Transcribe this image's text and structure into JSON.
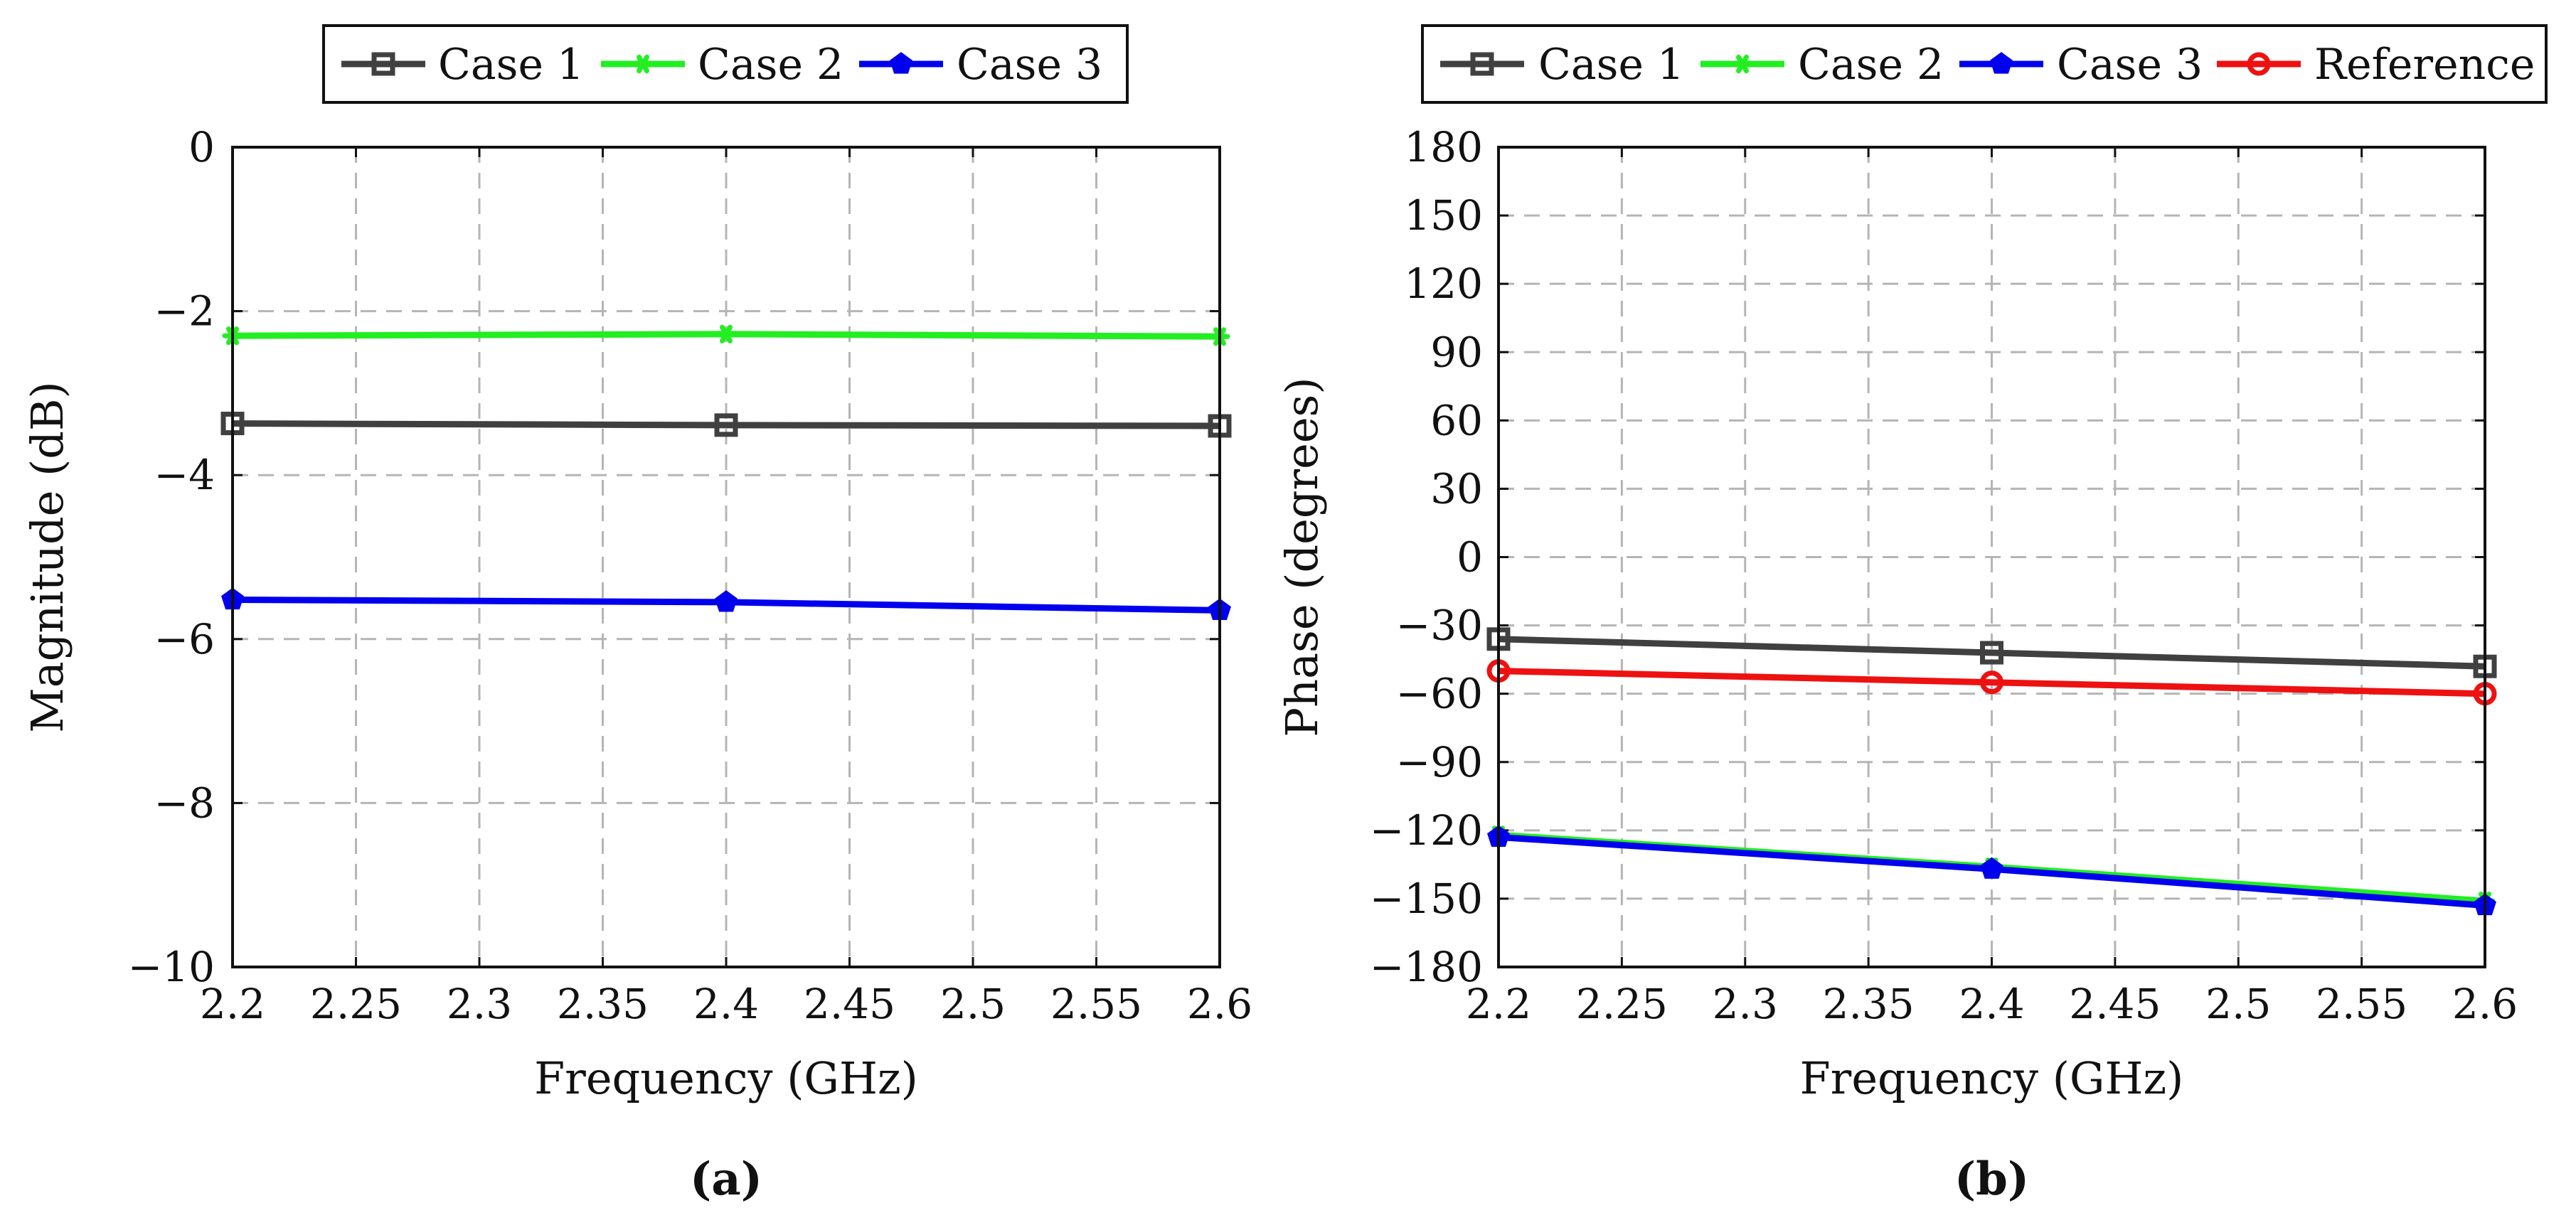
{
  "chart_data": [
    {
      "type": "line",
      "panel_label": "(a)",
      "xlabel": "Frequency (GHz)",
      "ylabel": "Magnitude (dB)",
      "xlim": [
        2.2,
        2.6
      ],
      "ylim": [
        -10,
        0
      ],
      "xticks": [
        2.2,
        2.25,
        2.3,
        2.35,
        2.4,
        2.45,
        2.5,
        2.55,
        2.6
      ],
      "xtick_labels": [
        "2.2",
        "2.25",
        "2.3",
        "2.35",
        "2.4",
        "2.45",
        "2.5",
        "2.55",
        "2.6"
      ],
      "yticks": [
        0,
        -2,
        -4,
        -6,
        -8,
        -10
      ],
      "ytick_labels": [
        "0",
        "−2",
        "−4",
        "−6",
        "−8",
        "−10"
      ],
      "grid": true,
      "legend_position": "top",
      "series": [
        {
          "name": "Case 1",
          "color": "#404040",
          "marker": "square",
          "x": [
            2.2,
            2.4,
            2.6
          ],
          "values": [
            -3.37,
            -3.39,
            -3.4
          ]
        },
        {
          "name": "Case 2",
          "color": "#22ee22",
          "marker": "star",
          "x": [
            2.2,
            2.4,
            2.6
          ],
          "values": [
            -2.3,
            -2.28,
            -2.31
          ]
        },
        {
          "name": "Case 3",
          "color": "#0000ee",
          "marker": "pentagon",
          "x": [
            2.2,
            2.4,
            2.6
          ],
          "values": [
            -5.52,
            -5.55,
            -5.65
          ]
        }
      ]
    },
    {
      "type": "line",
      "panel_label": "(b)",
      "xlabel": "Frequency (GHz)",
      "ylabel": "Phase (degrees)",
      "xlim": [
        2.2,
        2.6
      ],
      "ylim": [
        -180,
        180
      ],
      "xticks": [
        2.2,
        2.25,
        2.3,
        2.35,
        2.4,
        2.45,
        2.5,
        2.55,
        2.6
      ],
      "xtick_labels": [
        "2.2",
        "2.25",
        "2.3",
        "2.35",
        "2.4",
        "2.45",
        "2.5",
        "2.55",
        "2.6"
      ],
      "yticks": [
        180,
        150,
        120,
        90,
        60,
        30,
        0,
        -30,
        -60,
        -90,
        -120,
        -150,
        -180
      ],
      "ytick_labels": [
        "180",
        "150",
        "120",
        "90",
        "60",
        "30",
        "0",
        "−30",
        "−60",
        "−90",
        "−120",
        "−150",
        "−180"
      ],
      "grid": true,
      "legend_position": "top",
      "series": [
        {
          "name": "Case 1",
          "color": "#404040",
          "marker": "square",
          "x": [
            2.2,
            2.4,
            2.6
          ],
          "values": [
            -36,
            -42,
            -48
          ]
        },
        {
          "name": "Case 2",
          "color": "#22ee22",
          "marker": "star",
          "x": [
            2.2,
            2.4,
            2.6
          ],
          "values": [
            -122,
            -136,
            -151
          ]
        },
        {
          "name": "Case 3",
          "color": "#0000ee",
          "marker": "pentagon",
          "x": [
            2.2,
            2.4,
            2.6
          ],
          "values": [
            -123,
            -137,
            -153
          ]
        },
        {
          "name": "Reference",
          "color": "#ee1111",
          "marker": "circle",
          "x": [
            2.2,
            2.4,
            2.6
          ],
          "values": [
            -50,
            -55,
            -60
          ]
        }
      ]
    }
  ]
}
